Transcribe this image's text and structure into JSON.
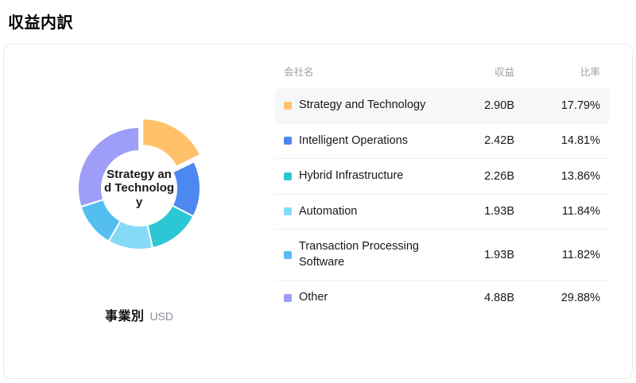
{
  "page": {
    "title": "収益内訳"
  },
  "chart": {
    "center_label": "Strategy and Technology",
    "caption": "事業別",
    "unit": "USD"
  },
  "table": {
    "headers": {
      "name": "会社名",
      "revenue": "収益",
      "ratio": "比率"
    }
  },
  "chart_data": {
    "type": "pie",
    "donut": true,
    "title": "収益内訳",
    "unit": "USD",
    "selected": "Strategy and Technology",
    "legend_position": "table-right",
    "series": [
      {
        "name": "Strategy and Technology",
        "revenue": "2.90B",
        "percent": 17.79,
        "ratio": "17.79%",
        "color": "#FFC069"
      },
      {
        "name": "Intelligent Operations",
        "revenue": "2.42B",
        "percent": 14.81,
        "ratio": "14.81%",
        "color": "#4D88F0"
      },
      {
        "name": "Hybrid Infrastructure",
        "revenue": "2.26B",
        "percent": 13.86,
        "ratio": "13.86%",
        "color": "#2BC7D4"
      },
      {
        "name": "Automation",
        "revenue": "1.93B",
        "percent": 11.84,
        "ratio": "11.84%",
        "color": "#85DAF8"
      },
      {
        "name": "Transaction Processing Software",
        "revenue": "1.93B",
        "percent": 11.82,
        "ratio": "11.82%",
        "color": "#55BEF0"
      },
      {
        "name": "Other",
        "revenue": "4.88B",
        "percent": 29.88,
        "ratio": "29.88%",
        "color": "#9E9DF7"
      }
    ]
  }
}
